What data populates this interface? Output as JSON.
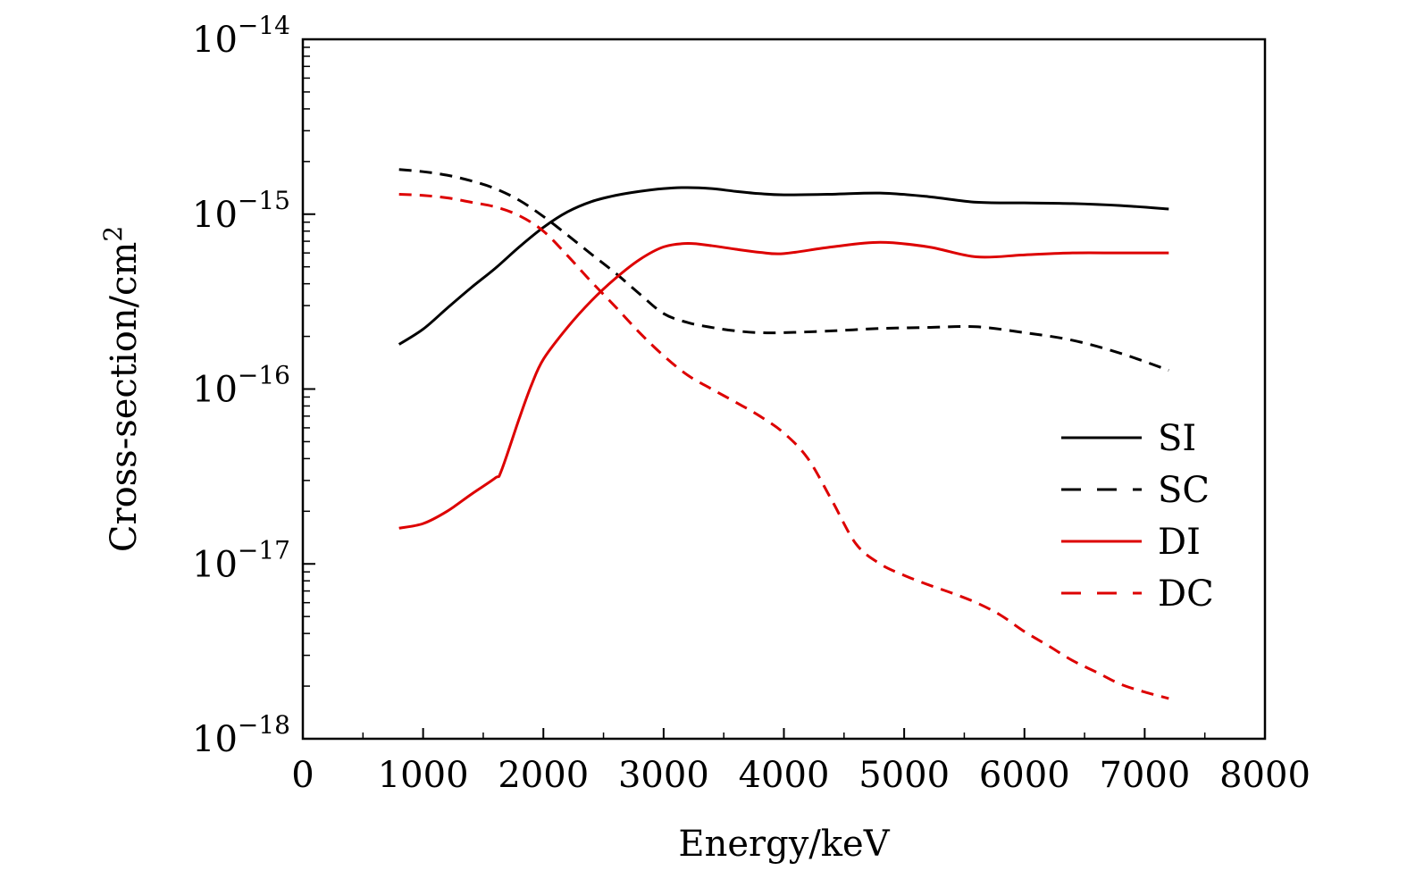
{
  "chart_data": {
    "type": "line",
    "xlabel": "Energy/keV",
    "ylabel_base": "Cross-section/cm",
    "ylabel_sup": "2",
    "x_scale": "linear",
    "y_scale": "log",
    "xlim": [
      0,
      8000
    ],
    "ylim": [
      1e-18,
      1e-14
    ],
    "x_ticks": [
      0,
      1000,
      2000,
      3000,
      4000,
      5000,
      6000,
      7000,
      8000
    ],
    "y_ticks": [
      {
        "value": 1e-18,
        "base": "10",
        "exp": "−18"
      },
      {
        "value": 1e-17,
        "base": "10",
        "exp": "−17"
      },
      {
        "value": 1e-16,
        "base": "10",
        "exp": "−16"
      },
      {
        "value": 1e-15,
        "base": "10",
        "exp": "−15"
      },
      {
        "value": 1e-14,
        "base": "10",
        "exp": "−14"
      }
    ],
    "grid": false,
    "legend_position": "right",
    "series": [
      {
        "name": "SI",
        "color": "#000000",
        "dash": "solid",
        "x": [
          800,
          1000,
          1200,
          1400,
          1600,
          1800,
          2000,
          2200,
          2400,
          2600,
          2800,
          3000,
          3200,
          3400,
          3600,
          3800,
          4000,
          4400,
          4800,
          5200,
          5600,
          6000,
          6400,
          6800,
          7200
        ],
        "y": [
          1.8e-16,
          2.2e-16,
          2.9e-16,
          3.8e-16,
          4.9e-16,
          6.5e-16,
          8.4e-16,
          1.03e-15,
          1.18e-15,
          1.28e-15,
          1.35e-15,
          1.4e-15,
          1.42e-15,
          1.4e-15,
          1.35e-15,
          1.31e-15,
          1.29e-15,
          1.3e-15,
          1.32e-15,
          1.26e-15,
          1.17e-15,
          1.16e-15,
          1.15e-15,
          1.12e-15,
          1.07e-15
        ]
      },
      {
        "name": "SC",
        "color": "#000000",
        "dash": "dashed",
        "x": [
          800,
          1000,
          1200,
          1400,
          1600,
          1800,
          2000,
          2200,
          2400,
          2600,
          2800,
          3000,
          3200,
          3400,
          3600,
          3800,
          4000,
          4400,
          4800,
          5200,
          5600,
          6000,
          6400,
          6800,
          7200
        ],
        "y": [
          1.8e-15,
          1.75e-15,
          1.67e-15,
          1.55e-15,
          1.4e-15,
          1.2e-15,
          9.7e-16,
          7.6e-16,
          5.9e-16,
          4.6e-16,
          3.5e-16,
          2.7e-16,
          2.4e-16,
          2.25e-16,
          2.15e-16,
          2.1e-16,
          2.1e-16,
          2.15e-16,
          2.22e-16,
          2.25e-16,
          2.27e-16,
          2.1e-16,
          1.9e-16,
          1.6e-16,
          1.28e-16
        ]
      },
      {
        "name": "DI",
        "color": "#dd0000",
        "dash": "solid",
        "x": [
          800,
          1000,
          1200,
          1400,
          1600,
          1650,
          1800,
          1900,
          2000,
          2200,
          2400,
          2600,
          2800,
          3000,
          3200,
          3400,
          3600,
          3800,
          4000,
          4400,
          4800,
          5200,
          5600,
          6000,
          6400,
          6800,
          7200
        ],
        "y": [
          1.6e-17,
          1.7e-17,
          2e-17,
          2.5e-17,
          3.1e-17,
          3.4e-17,
          6.8e-17,
          1.05e-16,
          1.48e-16,
          2.25e-16,
          3.2e-16,
          4.3e-16,
          5.5e-16,
          6.5e-16,
          6.8e-16,
          6.6e-16,
          6.3e-16,
          6.05e-16,
          5.95e-16,
          6.5e-16,
          6.9e-16,
          6.5e-16,
          5.7e-16,
          5.85e-16,
          6e-16,
          6e-16,
          6e-16
        ]
      },
      {
        "name": "DC",
        "color": "#dd0000",
        "dash": "dashed",
        "x": [
          800,
          1000,
          1200,
          1400,
          1600,
          1800,
          2000,
          2200,
          2400,
          2600,
          2800,
          3000,
          3200,
          3400,
          3600,
          3800,
          4000,
          4200,
          4400,
          4600,
          4800,
          5000,
          5200,
          5400,
          5600,
          5800,
          6000,
          6200,
          6400,
          6600,
          6800,
          7000,
          7200
        ],
        "y": [
          1.3e-15,
          1.28e-15,
          1.24e-15,
          1.17e-15,
          1.1e-15,
          9.8e-16,
          8e-16,
          5.8e-16,
          4.1e-16,
          2.95e-16,
          2.1e-16,
          1.55e-16,
          1.2e-16,
          1e-16,
          8.4e-17,
          7e-17,
          5.6e-17,
          4e-17,
          2.3e-17,
          1.3e-17,
          1e-17,
          8.6e-18,
          7.6e-18,
          6.8e-18,
          6e-18,
          5.1e-18,
          4.1e-18,
          3.4e-18,
          2.8e-18,
          2.4e-18,
          2.05e-18,
          1.85e-18,
          1.7e-18
        ]
      }
    ]
  }
}
